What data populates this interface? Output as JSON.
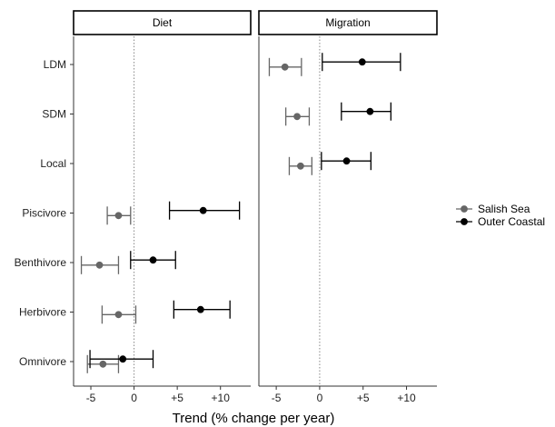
{
  "chart_data": {
    "type": "scatter",
    "subtype": "dot-and-whisker, faceted",
    "xlabel": "Trend (% change per year)",
    "ylabel": "",
    "xlim": [
      -7,
      13.5
    ],
    "x_ticks": [
      {
        "value": -5,
        "label": "-5"
      },
      {
        "value": 0,
        "label": "0"
      },
      {
        "value": 5,
        "label": "+5"
      },
      {
        "value": 10,
        "label": "+10"
      }
    ],
    "reference_line_x": 0,
    "grid": false,
    "legend_position": "right",
    "categories": [
      "LDM",
      "SDM",
      "Local",
      "Piscivore",
      "Benthivore",
      "Herbivore",
      "Omnivore"
    ],
    "panels": [
      {
        "title": "Diet",
        "categories": [
          "Piscivore",
          "Benthivore",
          "Herbivore",
          "Omnivore"
        ]
      },
      {
        "title": "Migration",
        "categories": [
          "LDM",
          "SDM",
          "Local"
        ]
      }
    ],
    "series": [
      {
        "name": "Salish Sea",
        "color": "#666666",
        "points": [
          {
            "panel": "Migration",
            "category": "LDM",
            "x": -4.0,
            "low": -5.8,
            "high": -2.1
          },
          {
            "panel": "Migration",
            "category": "SDM",
            "x": -2.6,
            "low": -3.9,
            "high": -1.2
          },
          {
            "panel": "Migration",
            "category": "Local",
            "x": -2.2,
            "low": -3.5,
            "high": -0.9
          },
          {
            "panel": "Diet",
            "category": "Piscivore",
            "x": -1.8,
            "low": -3.1,
            "high": -0.4
          },
          {
            "panel": "Diet",
            "category": "Benthivore",
            "x": -4.0,
            "low": -6.1,
            "high": -1.8
          },
          {
            "panel": "Diet",
            "category": "Herbivore",
            "x": -1.8,
            "low": -3.7,
            "high": 0.2
          },
          {
            "panel": "Diet",
            "category": "Omnivore",
            "x": -3.6,
            "low": -5.4,
            "high": -1.8
          }
        ]
      },
      {
        "name": "Outer Coastal",
        "color": "#000000",
        "points": [
          {
            "panel": "Migration",
            "category": "LDM",
            "x": 4.9,
            "low": 0.3,
            "high": 9.3
          },
          {
            "panel": "Migration",
            "category": "SDM",
            "x": 5.8,
            "low": 2.5,
            "high": 8.2
          },
          {
            "panel": "Migration",
            "category": "Local",
            "x": 3.1,
            "low": 0.2,
            "high": 5.9
          },
          {
            "panel": "Diet",
            "category": "Piscivore",
            "x": 8.0,
            "low": 4.1,
            "high": 12.2
          },
          {
            "panel": "Diet",
            "category": "Benthivore",
            "x": 2.2,
            "low": -0.4,
            "high": 4.8
          },
          {
            "panel": "Diet",
            "category": "Herbivore",
            "x": 7.7,
            "low": 4.6,
            "high": 11.1
          },
          {
            "panel": "Diet",
            "category": "Omnivore",
            "x": -1.3,
            "low": -5.1,
            "high": 2.2
          }
        ]
      }
    ]
  }
}
